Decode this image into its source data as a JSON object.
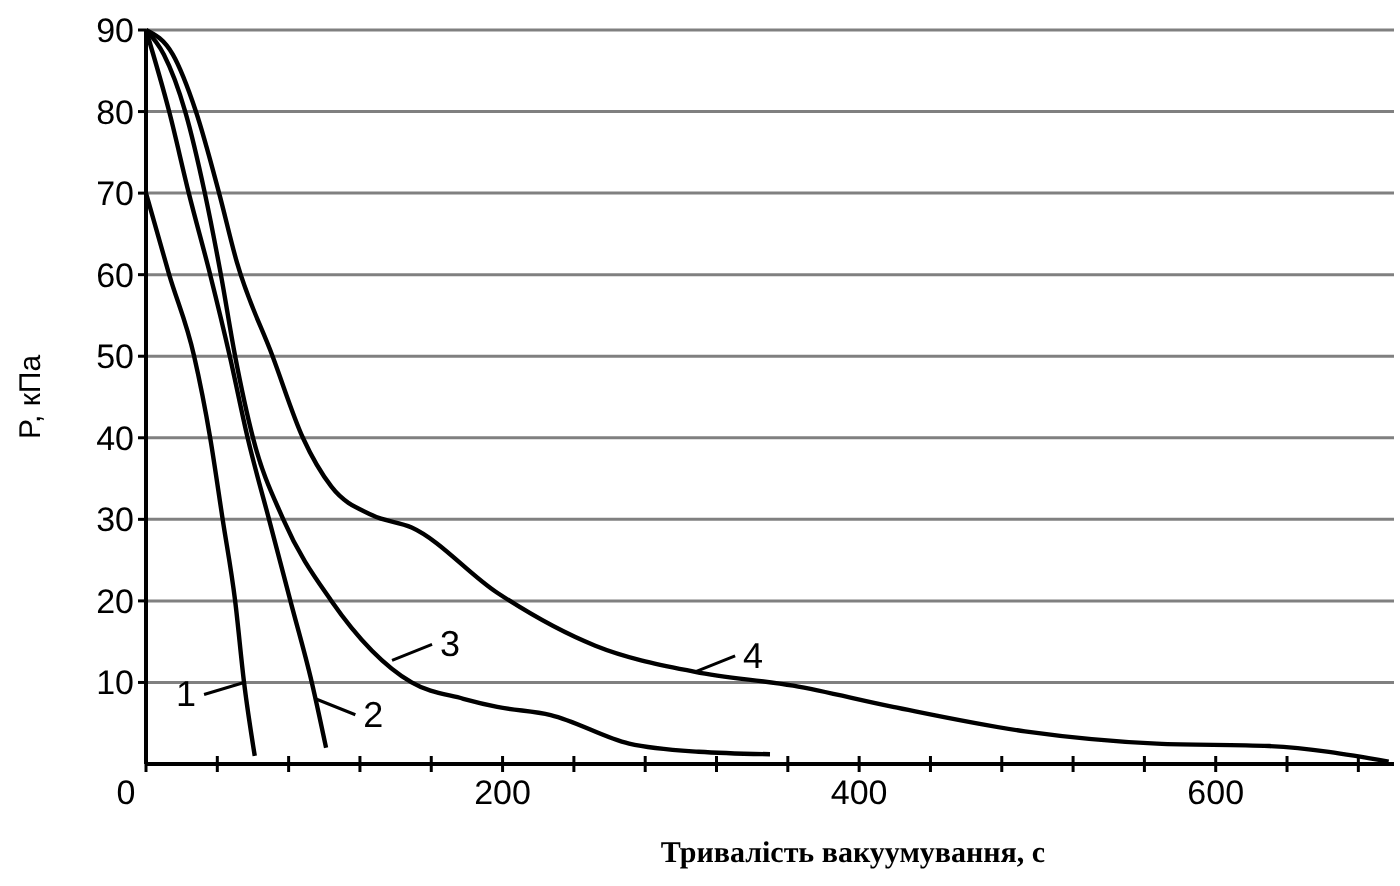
{
  "chart_data": {
    "type": "line",
    "xlabel": "Тривалість вакуумування, с",
    "ylabel": "P, кПа",
    "xlim": [
      0,
      700
    ],
    "ylim": [
      0,
      90
    ],
    "xticks": [
      0,
      {
        "value": 40,
        "label": null
      },
      {
        "value": 80,
        "label": null
      },
      {
        "value": 120,
        "label": null
      },
      {
        "value": 160,
        "label": null
      },
      200,
      {
        "value": 240,
        "label": null
      },
      {
        "value": 280,
        "label": null
      },
      {
        "value": 320,
        "label": null
      },
      {
        "value": 360,
        "label": null
      },
      400,
      {
        "value": 440,
        "label": null
      },
      {
        "value": 480,
        "label": null
      },
      {
        "value": 520,
        "label": null
      },
      {
        "value": 560,
        "label": null
      },
      600,
      {
        "value": 640,
        "label": null
      },
      {
        "value": 680,
        "label": null
      }
    ],
    "yticks": [
      10,
      20,
      30,
      40,
      50,
      60,
      70,
      80,
      90
    ],
    "grid": "y",
    "marker": "none",
    "line_style": "solid",
    "series": [
      {
        "color": "#000000",
        "x": [
          0,
          13,
          27,
          36,
          43,
          50,
          55,
          61
        ],
        "values": [
          70,
          60,
          50,
          40,
          30,
          20,
          10,
          1
        ]
      },
      {
        "color": "#000000",
        "x": [
          0,
          13,
          24,
          36,
          47,
          57,
          69,
          81,
          93,
          101
        ],
        "values": [
          90,
          80,
          70,
          60,
          50,
          40,
          30,
          20,
          10,
          2
        ]
      },
      {
        "color": "#000000",
        "x": [
          0,
          10,
          22,
          33,
          42,
          50,
          60,
          77,
          104,
          149,
          178,
          197,
          227,
          271,
          310,
          350
        ],
        "values": [
          90,
          87,
          80,
          70,
          60,
          50,
          40,
          30,
          20,
          10,
          8,
          7,
          6,
          2.5,
          1.5,
          1.2
        ]
      },
      {
        "color": "#000000",
        "x": [
          0,
          15,
          28,
          41,
          51,
          71,
          88,
          104,
          127,
          149,
          197,
          252,
          308,
          363,
          419,
          493,
          567,
          630,
          697
        ],
        "values": [
          90,
          87,
          80,
          70,
          61.5,
          50,
          40,
          34,
          30.5,
          29,
          21,
          14.5,
          11.3,
          9.6,
          7,
          4,
          2.5,
          2.2,
          0.3
        ]
      }
    ],
    "annotations": [
      {
        "text": "1",
        "x": 55,
        "y": 10
      },
      {
        "text": "2",
        "x": 95,
        "y": 8
      },
      {
        "text": "3",
        "x": 138,
        "y": 12.7
      },
      {
        "text": "4",
        "x": 308,
        "y": 11.3
      }
    ]
  }
}
